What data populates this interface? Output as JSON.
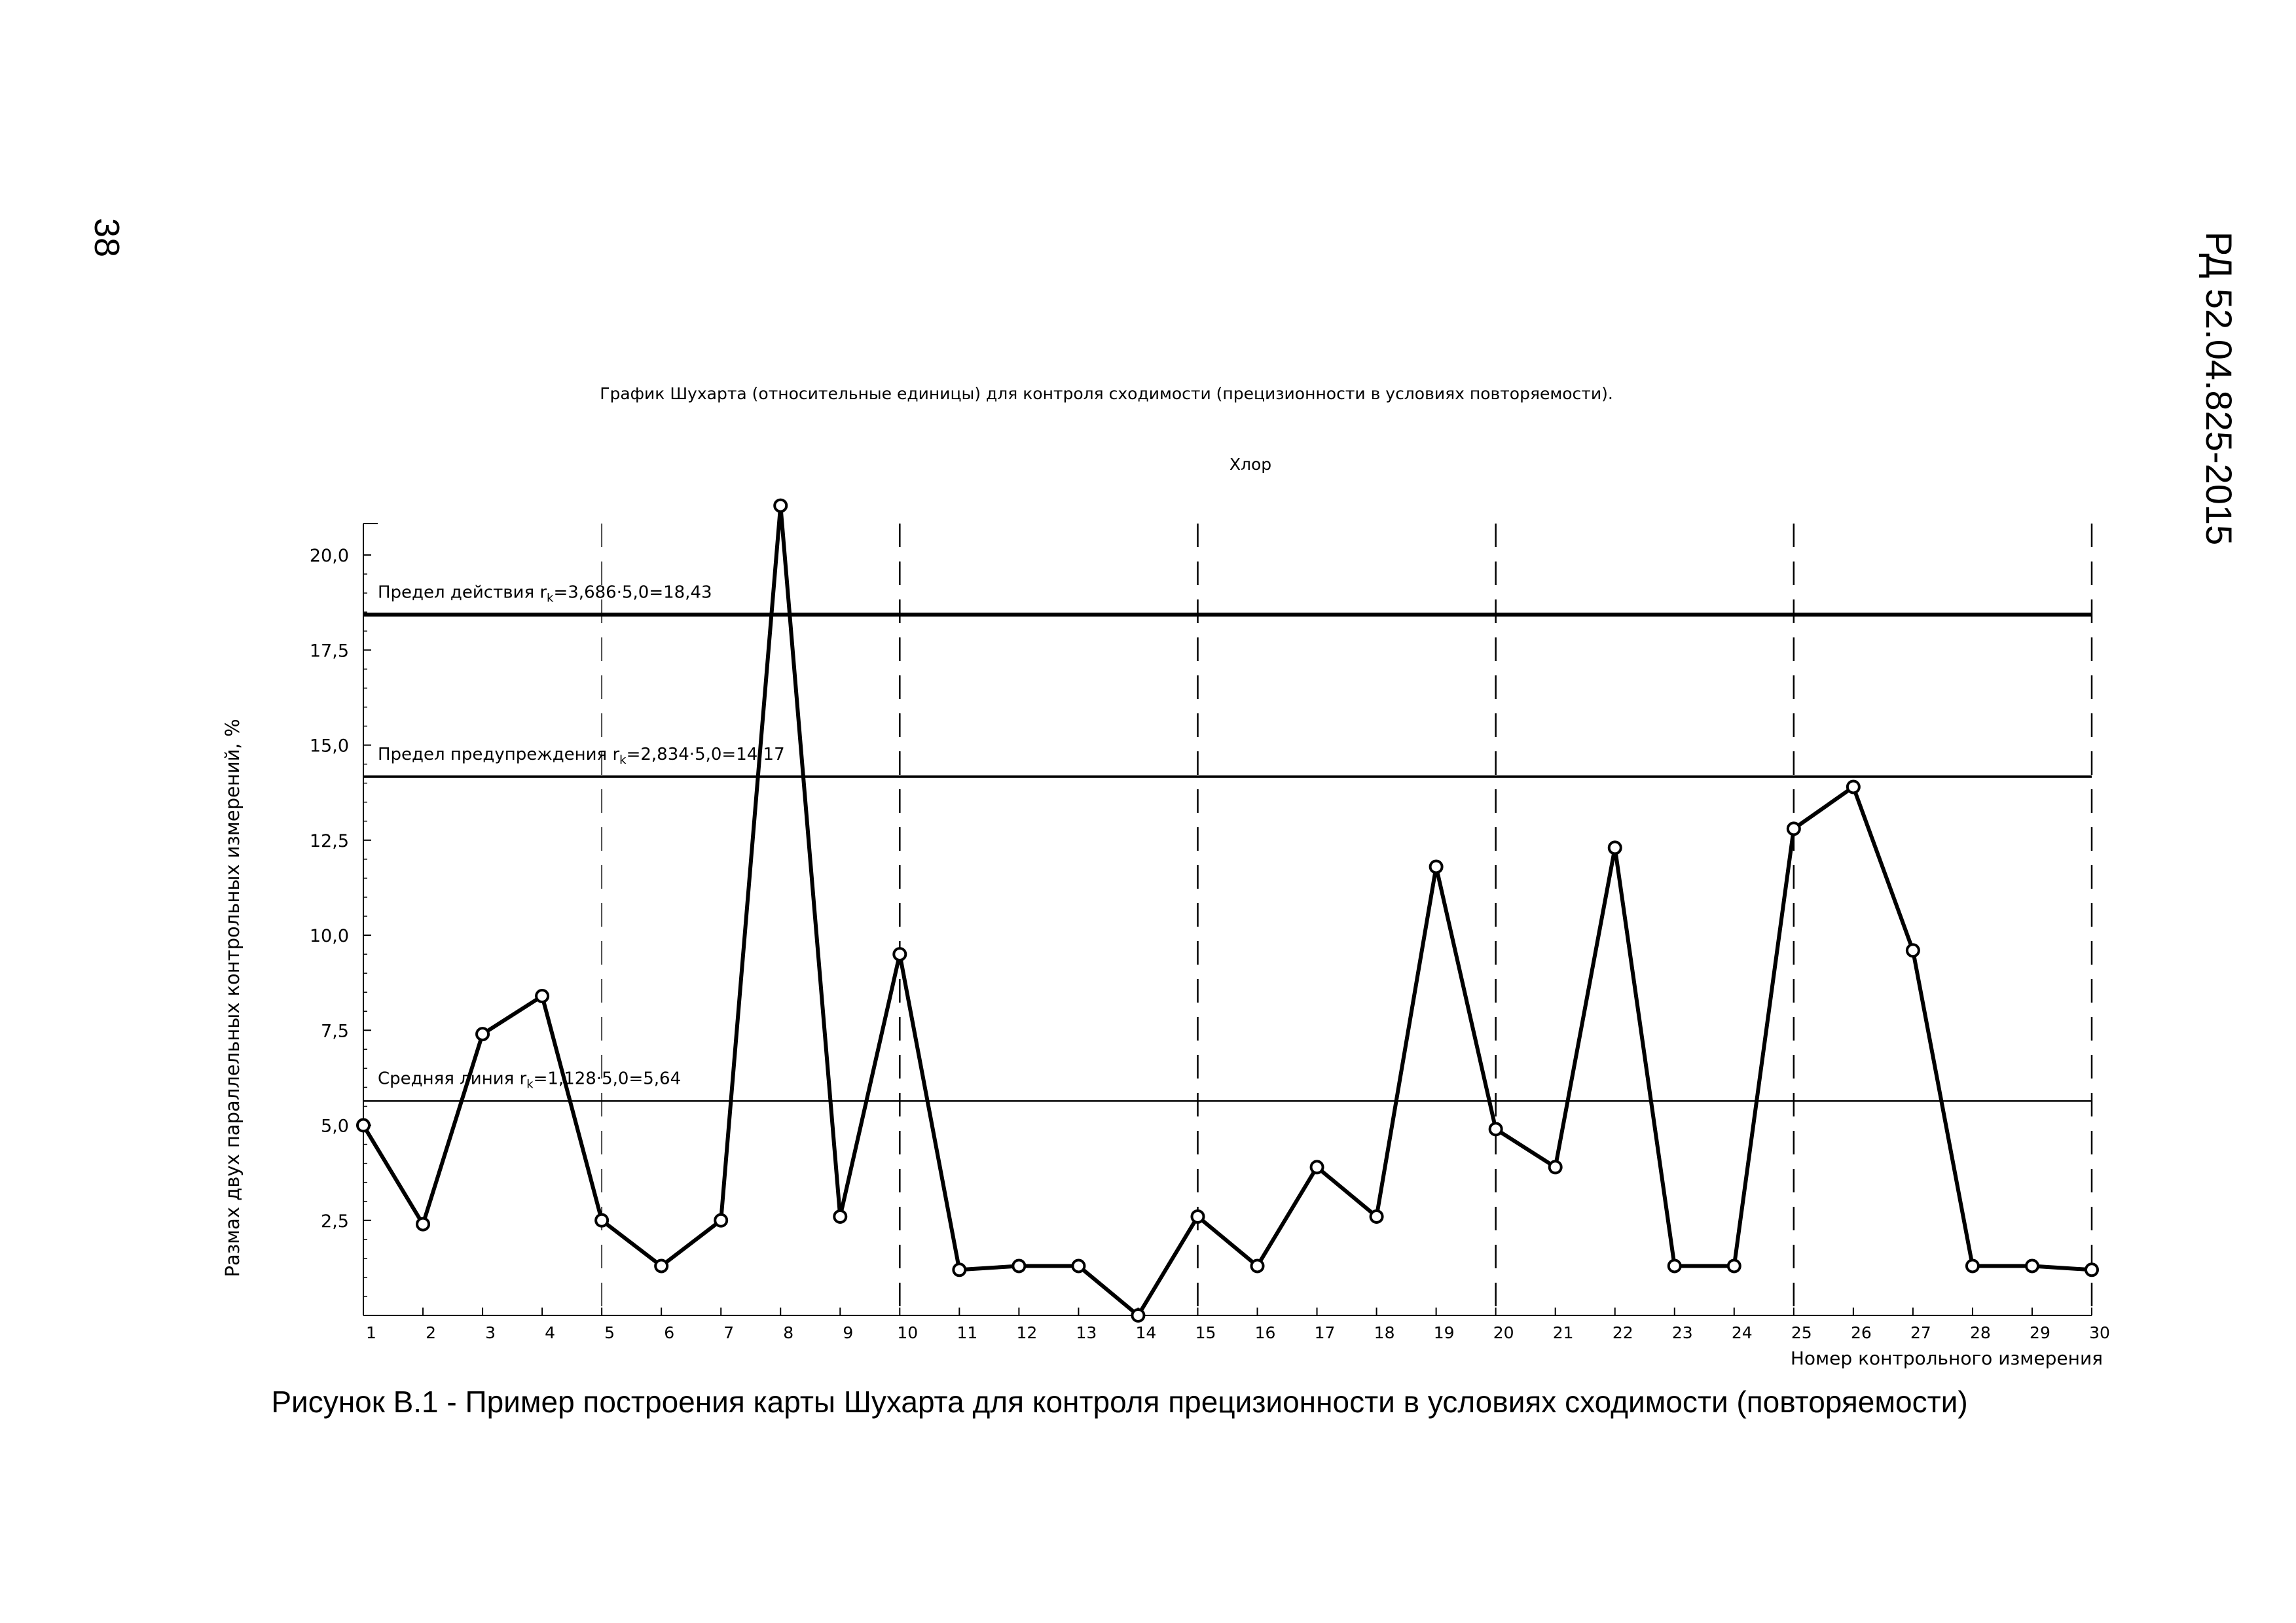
{
  "page": {
    "page_number": "38",
    "document_code": "РД 52.04.825-2015",
    "caption": "Рисунок В.1 - Пример построения карты Шухарта для контроля прецизионности в условиях сходимости (повторяемости)"
  },
  "chart_data": {
    "type": "line",
    "title": "График Шухарта (относительные единицы) для контроля сходимости (прецизионности в условиях повторяемости).",
    "subtitle": "Хлор",
    "xlabel": "Номер контрольного измерения",
    "ylabel": "Размах двух параллельных контрольных измерений, %",
    "xlim": [
      1,
      30
    ],
    "ylim": [
      0,
      21
    ],
    "x_ticks": [
      "1",
      "2",
      "3",
      "4",
      "5",
      "6",
      "7",
      "8",
      "9",
      "10",
      "11",
      "12",
      "13",
      "14",
      "15",
      "16",
      "17",
      "18",
      "19",
      "20",
      "21",
      "22",
      "23",
      "24",
      "25",
      "26",
      "27",
      "28",
      "29",
      "30"
    ],
    "y_ticks": [
      {
        "value": 2.5,
        "label": "2,5"
      },
      {
        "value": 5.0,
        "label": "5,0"
      },
      {
        "value": 7.5,
        "label": "7,5"
      },
      {
        "value": 10.0,
        "label": "10,0"
      },
      {
        "value": 12.5,
        "label": "12,5"
      },
      {
        "value": 15.0,
        "label": "15,0"
      },
      {
        "value": 17.5,
        "label": "17,5"
      },
      {
        "value": 20.0,
        "label": "20,0"
      }
    ],
    "vertical_dashed_lines_at": [
      5,
      10,
      15,
      20,
      25,
      30
    ],
    "control_lines": [
      {
        "label_prefix": "Предел действия r",
        "label_sub": "k",
        "label_suffix": "=3,686·5,0=18,43",
        "value": 18.43
      },
      {
        "label_prefix": "Предел предупреждения r",
        "label_sub": "k",
        "label_suffix": "=2,834·5,0=14,17",
        "value": 14.17
      },
      {
        "label_prefix": "Средняя линия r",
        "label_sub": "k",
        "label_suffix": "=1,128·5,0=5,64",
        "value": 5.64
      }
    ],
    "series": [
      {
        "x": [
          1,
          2,
          3,
          4,
          5,
          6,
          7,
          8,
          9,
          10,
          11,
          12,
          13,
          14,
          15,
          16,
          17,
          18,
          19,
          20,
          21,
          22,
          23,
          24,
          25,
          26,
          27,
          28,
          29,
          30
        ],
        "values": [
          5.0,
          2.4,
          7.4,
          8.4,
          2.5,
          1.3,
          2.5,
          21.3,
          2.6,
          9.5,
          1.2,
          1.3,
          1.3,
          0.0,
          2.6,
          1.3,
          3.9,
          2.6,
          11.8,
          4.9,
          3.9,
          12.3,
          1.3,
          1.3,
          12.8,
          13.9,
          9.6,
          1.3,
          1.3,
          1.2
        ]
      }
    ],
    "grid": false,
    "legend": "none"
  }
}
